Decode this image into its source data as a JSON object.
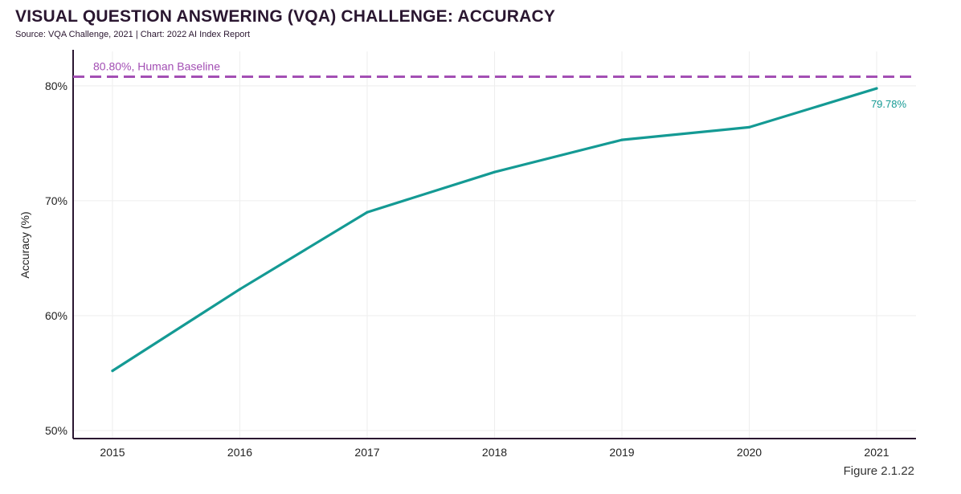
{
  "header": {
    "title": "VISUAL QUESTION ANSWERING (VQA) CHALLENGE: ACCURACY",
    "subtitle": "Source: VQA Challenge, 2021 | Chart: 2022 AI Index Report"
  },
  "footer": {
    "figure_label": "Figure 2.1.22"
  },
  "colors": {
    "line": "#149a94",
    "baseline": "#a34fb4",
    "axis": "#2a1630",
    "grid": "#eeeeee"
  },
  "chart_data": {
    "type": "line",
    "title": "VISUAL QUESTION ANSWERING (VQA) CHALLENGE: ACCURACY",
    "xlabel": "",
    "ylabel": "Accuracy (%)",
    "x": [
      "2015",
      "2016",
      "2017",
      "2018",
      "2019",
      "2020",
      "2021"
    ],
    "series": [
      {
        "values": [
          55.2,
          62.3,
          69.0,
          72.5,
          75.3,
          76.4,
          79.78
        ]
      }
    ],
    "ylim": [
      49.3,
      83.0
    ],
    "yticks": [
      50,
      60,
      70,
      80
    ],
    "ytick_labels": [
      "50%",
      "60%",
      "70%",
      "80%"
    ],
    "reference_line": {
      "value": 80.8,
      "label": "80.80%, Human Baseline",
      "style": "dashed"
    },
    "data_labels": [
      {
        "x": "2021",
        "text": "79.78%"
      }
    ],
    "grid": true,
    "legend": "none"
  }
}
